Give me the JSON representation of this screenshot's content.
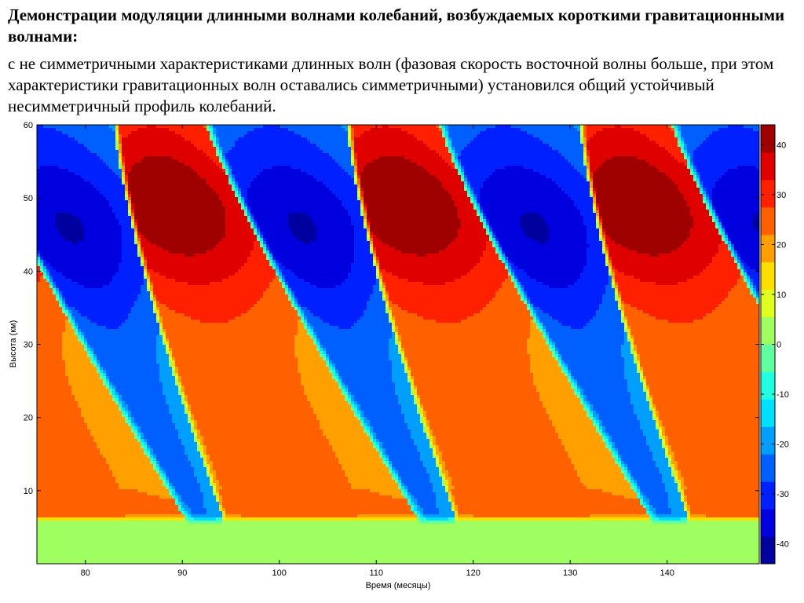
{
  "slide": {
    "heading": "Демонстрации модуляции длинными волнами колебаний, возбуждаемых короткими гравитационными волнами:",
    "text": "с не симметричными характеристиками длинных волн (фазовая скорость восточной волны больше, при этом характеристики гравитационных волн оставались симметричными) установился общий устойчивый несимметричный профиль колебаний."
  },
  "chart_data": {
    "type": "heatmap",
    "title": "",
    "xlabel": "Время (месяцы)",
    "ylabel": "Высота (км)",
    "xlim": [
      75,
      149.5
    ],
    "ylim": [
      0,
      60
    ],
    "xticks": [
      80,
      90,
      100,
      110,
      120,
      130,
      140
    ],
    "yticks": [
      10,
      20,
      30,
      40,
      50,
      60
    ],
    "colorbar": {
      "range": [
        -44,
        44
      ],
      "ticks": [
        -40,
        -30,
        -20,
        -10,
        0,
        10,
        20,
        30,
        40
      ],
      "colormap": "jet"
    },
    "period_months": 24,
    "westerly_onset_at_top_months": [
      83,
      107,
      131
    ],
    "easterly_onset_at_top_months": [
      92.5,
      116.5,
      140.5
    ],
    "max_westerly": 44,
    "max_easterly": -39,
    "lower_boundary_km": 5.5,
    "colors": {
      "westerly_peak": "#800000",
      "easterly_peak": "#00008f",
      "neutral": "#80ff80"
    }
  }
}
